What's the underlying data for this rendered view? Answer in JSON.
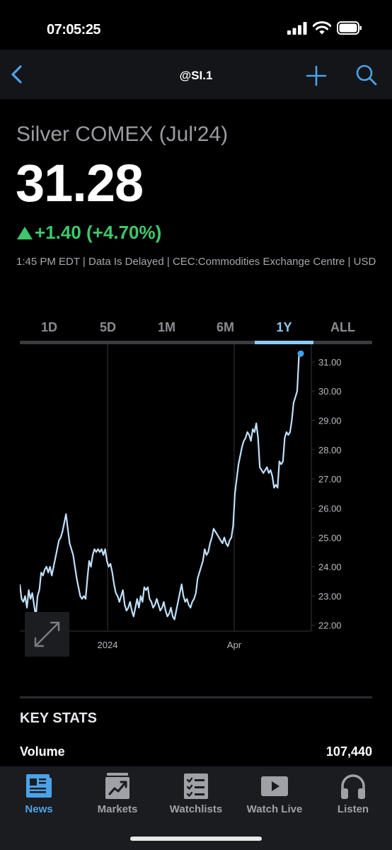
{
  "status": {
    "time": "07:05:25"
  },
  "nav": {
    "title": "@SI.1"
  },
  "quote": {
    "name": "Silver COMEX (Jul'24)",
    "price": "31.28",
    "change": "+1.40 (+4.70%)",
    "meta": "1:45 PM EDT | Data Is Delayed | CEC:Commodities Exchange Centre | USD",
    "change_color": "#3ec76b"
  },
  "range_tabs": [
    {
      "label": "1D"
    },
    {
      "label": "5D"
    },
    {
      "label": "1M"
    },
    {
      "label": "6M"
    },
    {
      "label": "1Y",
      "active": true
    },
    {
      "label": "ALL"
    }
  ],
  "chart_data": {
    "type": "line",
    "x_tick_labels": [
      "2024",
      "Apr"
    ],
    "y_tick_labels": [
      "31.00",
      "30.00",
      "29.00",
      "28.00",
      "27.00",
      "26.00",
      "25.00",
      "24.00",
      "23.00",
      "22.00"
    ],
    "ylim": [
      21.8,
      31.6
    ],
    "grid": true,
    "line_color": "#bfe0fb",
    "last_point_color": "#3aa3f0",
    "series": [
      {
        "values": [
          23.4,
          22.9,
          22.8,
          23.0,
          22.6,
          23.2,
          22.9,
          23.1,
          22.7,
          22.3,
          23.0,
          23.2,
          23.8,
          23.7,
          23.9,
          24.0,
          23.8,
          24.0,
          23.7,
          24.0,
          24.3,
          24.6,
          24.9,
          25.0,
          25.2,
          25.5,
          25.8,
          25.3,
          24.8,
          24.6,
          24.4,
          24.0,
          23.6,
          23.3,
          23.0,
          22.9,
          23.0,
          22.9,
          23.6,
          24.2,
          24.0,
          24.4,
          24.6,
          24.5,
          24.6,
          24.5,
          24.6,
          24.4,
          24.6,
          24.2,
          24.0,
          24.1,
          23.8,
          23.4,
          23.1,
          23.0,
          22.8,
          23.0,
          23.2,
          22.7,
          22.5,
          22.6,
          22.8,
          22.5,
          22.3,
          22.6,
          22.9,
          22.6,
          23.0,
          22.8,
          23.3,
          23.2,
          23.3,
          22.9,
          22.8,
          22.6,
          22.7,
          22.9,
          22.7,
          22.5,
          22.6,
          22.8,
          22.5,
          22.3,
          22.4,
          22.6,
          22.3,
          22.2,
          22.5,
          22.8,
          23.1,
          23.4,
          23.0,
          22.8,
          22.9,
          22.7,
          22.6,
          22.8,
          22.9,
          23.1,
          23.6,
          23.8,
          24.0,
          24.2,
          24.6,
          24.4,
          24.5,
          24.8,
          25.0,
          25.3,
          25.2,
          25.1,
          25.0,
          24.9,
          24.8,
          25.0,
          24.8,
          24.7,
          24.9,
          25.0,
          25.4,
          26.5,
          27.0,
          27.5,
          27.8,
          28.1,
          28.3,
          28.4,
          28.6,
          28.5,
          28.3,
          28.7,
          28.6,
          28.9,
          28.4,
          27.4,
          27.3,
          27.2,
          27.3,
          27.4,
          27.2,
          27.3,
          27.1,
          26.7,
          26.8,
          26.7,
          27.6,
          27.5,
          27.6,
          28.4,
          28.6,
          28.5,
          28.6,
          29.0,
          29.6,
          29.8,
          30.0,
          31.2,
          31.28
        ]
      }
    ]
  },
  "key_stats": {
    "title": "KEY STATS",
    "volume_label": "Volume",
    "volume_value": "107,440"
  },
  "tabbar": [
    {
      "label": "News",
      "icon": "news-icon",
      "active": true
    },
    {
      "label": "Markets",
      "icon": "markets-icon"
    },
    {
      "label": "Watchlists",
      "icon": "watchlists-icon"
    },
    {
      "label": "Watch Live",
      "icon": "play-icon"
    },
    {
      "label": "Listen",
      "icon": "headphones-icon"
    }
  ],
  "colors": {
    "accent": "#4aa3e8",
    "positive": "#3ec76b"
  }
}
